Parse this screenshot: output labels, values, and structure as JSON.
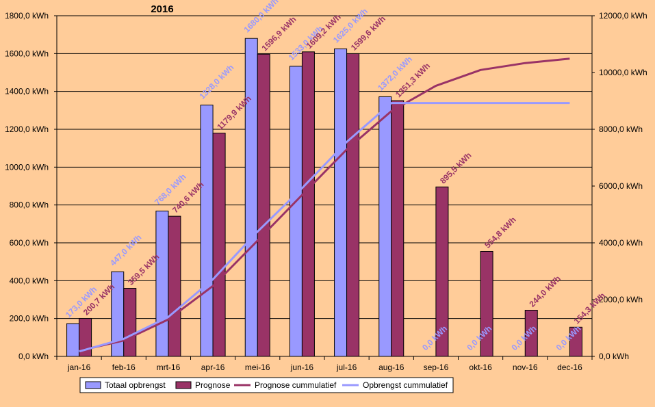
{
  "chart_data": {
    "type": "bar",
    "title": "2016",
    "categories": [
      "jan-16",
      "feb-16",
      "mrt-16",
      "apr-16",
      "mei-16",
      "jun-16",
      "jul-16",
      "aug-16",
      "sep-16",
      "okt-16",
      "nov-16",
      "dec-16"
    ],
    "y_left": {
      "min": 0,
      "max": 1800,
      "step": 200,
      "tick_labels": [
        "0,0 kWh",
        "200,0 kWh",
        "400,0 kWh",
        "600,0 kWh",
        "800,0 kWh",
        "1000,0 kWh",
        "1200,0 kWh",
        "1400,0 kWh",
        "1600,0 kWh",
        "1800,0 kWh"
      ]
    },
    "y_right": {
      "min": 0,
      "max": 12000,
      "step": 2000,
      "tick_labels": [
        "0,0 kWh",
        "2000,0 kWh",
        "4000,0 kWh",
        "6000,0 kWh",
        "8000,0 kWh",
        "10000,0 kWh",
        "12000,0 kWh"
      ]
    },
    "grid": true,
    "legend_position": "bottom",
    "series": [
      {
        "name": "Totaal opbrengst",
        "kind": "bar",
        "axis": "left",
        "color": "#9999FF",
        "values": [
          173.0,
          447.0,
          768.0,
          1328.0,
          1680.0,
          1533.0,
          1625.0,
          1372.0,
          0.0,
          0.0,
          0.0,
          0.0
        ],
        "labels": [
          "173,0 kWh",
          "447,0 kWh",
          "768,0 kWh",
          "1328,0 kWh",
          "1680,0 kWh",
          "1533,0 kWh",
          "1625,0 kWh",
          "1372,0 kWh",
          "0,0 kWh",
          "0,0 kWh",
          "0,0 kWh",
          "0,0 kWh"
        ]
      },
      {
        "name": "Prognose",
        "kind": "bar",
        "axis": "left",
        "color": "#993366",
        "values": [
          200.7,
          359.5,
          740.6,
          1179.9,
          1596.9,
          1609.2,
          1599.6,
          1351.3,
          895.5,
          554.8,
          244.0,
          154.3
        ],
        "labels": [
          "200,7 kWh",
          "359,5 kWh",
          "740,6 kWh",
          "1179,9 kWh",
          "1596,9 kWh",
          "1609,2 kWh",
          "1599,6 kWh",
          "1351,3 kWh",
          "895,5 kWh",
          "554,8 kWh",
          "244,0 kWh",
          "154,3 kWh"
        ]
      },
      {
        "name": "Prognose cummulatief",
        "kind": "line",
        "axis": "right",
        "color": "#993366",
        "values": [
          200.7,
          560.2,
          1300.8,
          2480.7,
          4077.6,
          5686.8,
          7286.4,
          8637.7,
          9533.2,
          10088.0,
          10332.0,
          10486.3
        ]
      },
      {
        "name": "Opbrengst cummulatief",
        "kind": "line",
        "axis": "right",
        "color": "#9999FF",
        "values": [
          173.0,
          620.0,
          1388.0,
          2716.0,
          4396.0,
          5929.0,
          7554.0,
          8926.0,
          8926.0,
          8926.0,
          8926.0,
          8926.0
        ]
      }
    ]
  }
}
